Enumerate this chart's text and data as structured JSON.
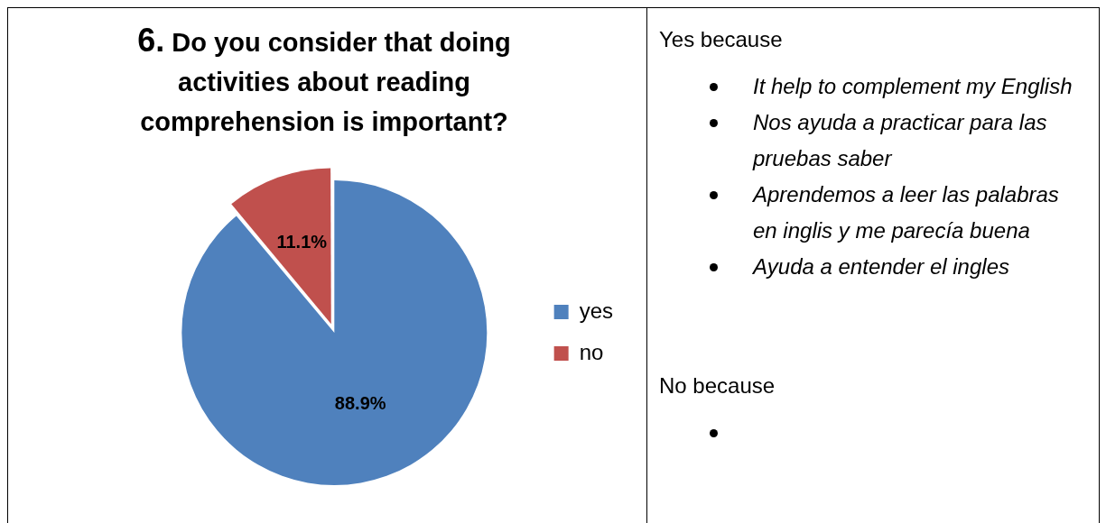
{
  "chart_data": [
    {
      "type": "pie",
      "title": "6. Do you consider that doing activities about reading comprehension is important?",
      "categories": [
        "yes",
        "no"
      ],
      "values": [
        88.9,
        11.1
      ],
      "colors": [
        "#4f81bd",
        "#c0504d"
      ],
      "value_labels": [
        "88.9%",
        "11.1%"
      ],
      "legend": "right"
    },
    {
      "type": "other",
      "title": "Yes because",
      "annotations": [
        "It help to complement my English",
        "Nos ayuda a practicar para las pruebas saber",
        "Aprendemos a leer las palabras en inglis y me parecía buena",
        "Ayuda a entender el ingles"
      ]
    },
    {
      "type": "other",
      "title": "No because"
    }
  ]
}
